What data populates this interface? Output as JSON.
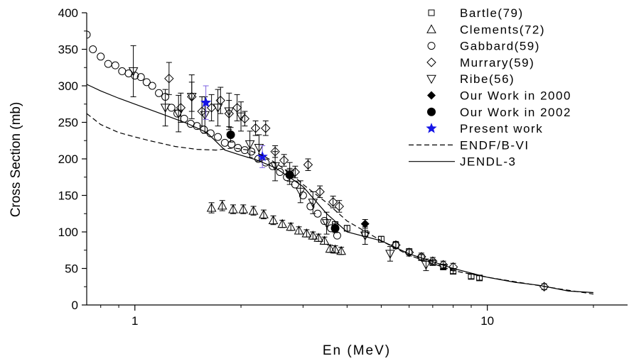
{
  "chart_data": {
    "type": "scatter",
    "title": "",
    "xlabel": "En (MeV)",
    "ylabel": "Cross Section (mb)",
    "xscale": "log",
    "xlim": [
      0.73,
      25
    ],
    "ylim": [
      0,
      400
    ],
    "x_ticks": [
      1,
      10
    ],
    "x_tick_labels": [
      "1",
      "10"
    ],
    "y_ticks": [
      0,
      50,
      100,
      150,
      200,
      250,
      300,
      350,
      400
    ],
    "y_tick_labels": [
      "0",
      "50",
      "100",
      "150",
      "200",
      "250",
      "300",
      "350",
      "400"
    ],
    "legend_position": "top-right",
    "grid": false,
    "series": [
      {
        "name": "Bartle(79)",
        "marker": "square",
        "color": "#000000",
        "x": [
          3.7,
          4.0,
          4.5,
          5.0,
          5.5,
          6.0,
          6.5,
          7.0,
          7.5,
          8.0,
          9.0,
          9.5
        ],
        "y": [
          110,
          105,
          98,
          90,
          82,
          73,
          65,
          58,
          52,
          46,
          39,
          37
        ],
        "yerr": [
          4,
          4,
          4,
          4,
          4,
          4,
          4,
          3,
          3,
          3,
          3,
          3
        ]
      },
      {
        "name": "Clements(72)",
        "marker": "triangle-up",
        "color": "#000000",
        "x": [
          1.65,
          1.77,
          1.9,
          2.03,
          2.17,
          2.32,
          2.47,
          2.62,
          2.77,
          2.92,
          3.07,
          3.2,
          3.32,
          3.45,
          3.58,
          3.7,
          3.85
        ],
        "y": [
          133,
          136,
          131,
          131,
          129,
          124,
          116,
          111,
          107,
          102,
          98,
          95,
          92,
          88,
          77,
          76,
          74
        ],
        "yerr": [
          7,
          7,
          6,
          6,
          6,
          6,
          6,
          5,
          5,
          5,
          5,
          5,
          5,
          5,
          5,
          5,
          5
        ]
      },
      {
        "name": "Gabbard(59)",
        "marker": "circle",
        "color": "#000000",
        "x": [
          0.73,
          0.76,
          0.8,
          0.84,
          0.88,
          0.92,
          0.96,
          1.0,
          1.04,
          1.08,
          1.12,
          1.17,
          1.22,
          1.27,
          1.32,
          1.38,
          1.44,
          1.5,
          1.57,
          1.64,
          1.72,
          1.8,
          1.88,
          1.96,
          2.05,
          2.14,
          2.24,
          2.35,
          2.46,
          2.58,
          2.7,
          2.85,
          3.0,
          3.15,
          3.3,
          3.45,
          3.6,
          3.75
        ],
        "y": [
          370,
          350,
          340,
          330,
          328,
          320,
          317,
          314,
          312,
          305,
          300,
          290,
          285,
          270,
          262,
          255,
          248,
          245,
          240,
          235,
          230,
          222,
          220,
          215,
          212,
          210,
          200,
          195,
          190,
          182,
          175,
          165,
          150,
          135,
          125,
          115,
          105,
          95
        ]
      },
      {
        "name": "Murrary(59)",
        "marker": "diamond",
        "color": "#000000",
        "x": [
          1.25,
          1.35,
          1.45,
          1.55,
          1.65,
          1.75,
          1.85,
          1.95,
          2.05,
          2.2,
          2.35,
          2.5,
          2.65,
          2.85,
          3.1,
          3.35,
          3.65,
          3.8,
          5.5,
          6.0,
          6.5,
          7.0,
          7.5,
          8.0,
          14.5
        ],
        "y": [
          310,
          270,
          285,
          265,
          270,
          280,
          262,
          270,
          255,
          242,
          242,
          210,
          198,
          182,
          192,
          155,
          141,
          135,
          82,
          72,
          66,
          60,
          55,
          52,
          25
        ],
        "yerr": [
          22,
          20,
          20,
          20,
          18,
          18,
          18,
          18,
          10,
          10,
          10,
          8,
          8,
          8,
          8,
          8,
          8,
          8,
          5,
          5,
          5,
          5,
          5,
          5,
          4
        ]
      },
      {
        "name": "Ribe(56)",
        "marker": "triangle-down",
        "color": "#000000",
        "x": [
          0.99,
          1.22,
          1.33,
          1.45,
          1.58,
          1.72,
          1.85,
          2.0,
          2.12,
          2.25,
          2.5,
          2.75,
          2.95,
          3.2,
          3.5,
          4.5,
          5.3,
          6.7
        ],
        "y": [
          320,
          270,
          262,
          285,
          260,
          270,
          265,
          258,
          220,
          215,
          190,
          180,
          155,
          140,
          112,
          95,
          70,
          55
        ],
        "yerr": [
          35,
          25,
          25,
          30,
          25,
          25,
          25,
          20,
          18,
          18,
          20,
          15,
          15,
          15,
          15,
          12,
          10,
          8
        ]
      },
      {
        "name": "Our Work in 2000",
        "marker": "filled-diamond",
        "color": "#000000",
        "x": [
          4.5
        ],
        "y": [
          111
        ],
        "yerr": [
          6
        ]
      },
      {
        "name": "Our Work in 2002",
        "marker": "filled-circle",
        "color": "#000000",
        "x": [
          1.87,
          2.75,
          3.7
        ],
        "y": [
          233,
          178,
          105
        ],
        "yerr": [
          10,
          9,
          6
        ]
      },
      {
        "name": "Present work",
        "marker": "star",
        "color": "#1515e6",
        "x": [
          1.59,
          2.3
        ],
        "y": [
          277,
          203
        ],
        "yerr": [
          23,
          15
        ]
      },
      {
        "name": "ENDF/B-VI",
        "marker": "none",
        "line": "dashed",
        "color": "#000000",
        "x": [
          0.73,
          0.8,
          0.9,
          1.0,
          1.1,
          1.3,
          1.5,
          1.7,
          1.9,
          2.1,
          2.3,
          2.5,
          2.8,
          3.0,
          3.5,
          4.0,
          5.0,
          6.0,
          8.0,
          10.0,
          13.0,
          16.0,
          20.0
        ],
        "y": [
          262,
          247,
          236,
          230,
          225,
          217,
          213,
          212,
          215,
          212,
          205,
          195,
          178,
          165,
          140,
          115,
          88,
          68,
          47,
          38,
          29,
          22,
          15
        ]
      },
      {
        "name": "JENDL-3",
        "marker": "none",
        "line": "solid",
        "color": "#000000",
        "x": [
          0.73,
          0.8,
          0.9,
          1.0,
          1.2,
          1.4,
          1.6,
          1.8,
          2.0,
          2.2,
          2.5,
          2.8,
          3.0,
          3.5,
          4.0,
          5.0,
          6.0,
          8.0,
          10.0,
          12.0,
          14.0,
          17.0,
          20.0
        ],
        "y": [
          302,
          293,
          283,
          275,
          261,
          249,
          236,
          212,
          205,
          199,
          188,
          172,
          162,
          125,
          100,
          88,
          70,
          50,
          38,
          31,
          27,
          19,
          17
        ]
      }
    ]
  }
}
